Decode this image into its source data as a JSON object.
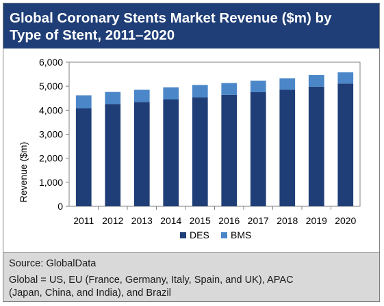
{
  "header": {
    "title_line1": "Global Coronary Stents Market Revenue ($m) by",
    "title_line2": "Type of Stent, 2011–2020"
  },
  "footer": {
    "source": "Source: GlobalData",
    "note_line1": "Global = US, EU (France, Germany, Italy, Spain, and UK), APAC",
    "note_line2": "(Japan, China, and India), and Brazil"
  },
  "colors": {
    "des": "#1f3e77",
    "bms": "#4a86c8",
    "header_bg": "#1f3e77"
  },
  "chart_data": {
    "type": "bar",
    "stacked": true,
    "categories": [
      "2011",
      "2012",
      "2013",
      "2014",
      "2015",
      "2016",
      "2017",
      "2018",
      "2019",
      "2020"
    ],
    "series": [
      {
        "name": "DES",
        "values": [
          4080,
          4260,
          4340,
          4450,
          4540,
          4640,
          4750,
          4850,
          4980,
          5110
        ]
      },
      {
        "name": "BMS",
        "values": [
          540,
          500,
          510,
          500,
          510,
          490,
          480,
          480,
          480,
          470
        ]
      }
    ],
    "ylabel": "Revenue ($m)",
    "xlabel": "",
    "ylim": [
      0,
      6000
    ],
    "yticks": [
      "0",
      "1,000",
      "2,000",
      "3,000",
      "4,000",
      "5,000",
      "6,000"
    ],
    "ytick_values": [
      0,
      1000,
      2000,
      3000,
      4000,
      5000,
      6000
    ],
    "grid": false,
    "legend_position": "bottom"
  }
}
